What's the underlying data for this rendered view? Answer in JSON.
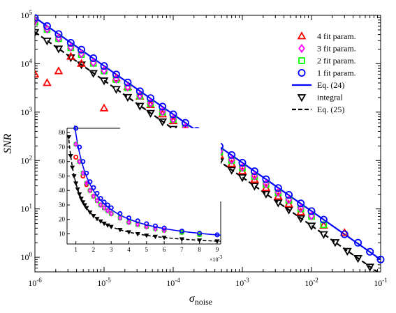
{
  "chart_data": [
    {
      "type": "scatter",
      "xlabel_main": "σ",
      "xlabel_sub": "noise",
      "ylabel": "SNR",
      "xscale": "log",
      "yscale": "log",
      "xlim": [
        1e-06,
        0.1
      ],
      "ylim": [
        0.5,
        100000
      ],
      "x_tick_labels": [
        {
          "base": "10",
          "exp": "-6",
          "value": 1e-06
        },
        {
          "base": "10",
          "exp": "-5",
          "value": 1e-05
        },
        {
          "base": "10",
          "exp": "-4",
          "value": 0.0001
        },
        {
          "base": "10",
          "exp": "-3",
          "value": 0.001
        },
        {
          "base": "10",
          "exp": "-2",
          "value": 0.01
        },
        {
          "base": "10",
          "exp": "-1",
          "value": 0.1
        }
      ],
      "y_tick_labels": [
        {
          "base": "10",
          "exp": "0",
          "value": 1
        },
        {
          "base": "10",
          "exp": "1",
          "value": 10
        },
        {
          "base": "10",
          "exp": "2",
          "value": 100
        },
        {
          "base": "10",
          "exp": "3",
          "value": 1000
        },
        {
          "base": "10",
          "exp": "4",
          "value": 10000
        },
        {
          "base": "10",
          "exp": "5",
          "value": 100000
        }
      ],
      "legend_position": "top-right",
      "series": [
        {
          "name": "4 fit param.",
          "marker": "triangle-up",
          "color": "#ff0000",
          "x": [
            1e-06,
            1.5e-06,
            2.2e-06,
            3.3e-06,
            4.7e-06,
            1e-05,
            1.5e-05,
            2.2e-05,
            3.3e-05,
            4.7e-05,
            7e-05,
            0.0001,
            0.00015,
            0.00022,
            0.00033,
            0.00047,
            0.0007,
            0.001,
            0.0015,
            0.0022,
            0.0033,
            0.0047,
            0.007,
            0.015,
            0.03
          ],
          "y": [
            6000,
            4000,
            7000,
            14000,
            10000,
            1200,
            5000,
            3300,
            2100,
            1400,
            900,
            650,
            420,
            280,
            185,
            128,
            85,
            60,
            40,
            27,
            18,
            12.5,
            8.5,
            4.5,
            3.2
          ]
        },
        {
          "name": "3 fit param.",
          "marker": "diamond",
          "color": "#ff00ff",
          "x": [
            1e-06,
            1.5e-06,
            2.2e-06,
            3.3e-06,
            4.7e-06,
            7e-06,
            1e-05,
            1.5e-05,
            2.2e-05,
            3.3e-05,
            4.7e-05,
            7e-05,
            0.0001,
            0.00015,
            0.00022,
            0.00033,
            0.00047,
            0.0007,
            0.001,
            0.0015,
            0.0022,
            0.0033,
            0.0047,
            0.007,
            0.01
          ],
          "y": [
            75000,
            52000,
            34000,
            22000,
            16000,
            10500,
            7300,
            4800,
            3300,
            2200,
            1550,
            1030,
            720,
            480,
            330,
            220,
            155,
            103,
            72,
            48,
            33,
            22,
            15.5,
            10.3,
            7.2
          ]
        },
        {
          "name": "2 fit param.",
          "marker": "square",
          "color": "#00ff00",
          "x": [
            1e-06,
            1.5e-06,
            2.2e-06,
            3.3e-06,
            4.7e-06,
            7e-06,
            1e-05,
            1.5e-05,
            2.2e-05,
            3.3e-05,
            4.7e-05,
            7e-05,
            0.0001,
            0.00015,
            0.00022,
            0.00033,
            0.00047,
            0.0007,
            0.001,
            0.0015,
            0.0022,
            0.0033,
            0.0047,
            0.007,
            0.01,
            0.015
          ],
          "y": [
            73000,
            51000,
            33000,
            21500,
            15500,
            10200,
            7100,
            4700,
            3200,
            2150,
            1500,
            1000,
            700,
            470,
            320,
            215,
            150,
            100,
            70,
            47,
            32,
            21.5,
            15,
            10,
            7,
            4.7
          ]
        },
        {
          "name": "1 fit param.",
          "marker": "circle",
          "color": "#0000ff",
          "x": [
            1e-06,
            1.5e-06,
            2.2e-06,
            3.3e-06,
            4.7e-06,
            7e-06,
            1e-05,
            1.5e-05,
            2.2e-05,
            3.3e-05,
            4.7e-05,
            7e-05,
            0.0001,
            0.00015,
            0.00022,
            0.00033,
            0.00047,
            0.0007,
            0.001,
            0.0015,
            0.0022,
            0.0033,
            0.0047,
            0.007,
            0.01,
            0.015,
            0.03,
            0.047,
            0.07,
            0.1
          ],
          "y": [
            88000,
            60000,
            41000,
            27000,
            19500,
            13000,
            9000,
            6000,
            4100,
            2700,
            1950,
            1300,
            900,
            600,
            410,
            270,
            195,
            130,
            90,
            60,
            41,
            27,
            19.5,
            13,
            9,
            6,
            3,
            2,
            1.3,
            0.9
          ]
        },
        {
          "name": "Eq. (24)",
          "marker": "line",
          "color": "#0000ff",
          "x": [
            1e-06,
            0.1
          ],
          "y": [
            90000,
            0.9
          ]
        },
        {
          "name": "integral",
          "marker": "triangle-down",
          "color": "#000000",
          "x": [
            1e-06,
            1.5e-06,
            2.2e-06,
            3.3e-06,
            4.7e-06,
            7e-06,
            1e-05,
            1.5e-05,
            2.2e-05,
            3.3e-05,
            4.7e-05,
            7e-05,
            0.0001,
            0.00015,
            0.00022,
            0.00033,
            0.00047,
            0.0007,
            0.001,
            0.0015,
            0.0022,
            0.0033,
            0.0047,
            0.007,
            0.01,
            0.015,
            0.022,
            0.033,
            0.047,
            0.07
          ],
          "y": [
            45000,
            30000,
            20500,
            13500,
            9600,
            6400,
            4500,
            3000,
            2050,
            1350,
            960,
            640,
            450,
            300,
            205,
            135,
            96,
            64,
            45,
            30,
            20.5,
            13.5,
            9.6,
            6.4,
            4.5,
            3,
            2.05,
            1.35,
            0.96,
            0.64
          ]
        },
        {
          "name": "Eq. (25)",
          "marker": "dashed-line",
          "color": "#000000",
          "x": [
            1e-06,
            0.1
          ],
          "y": [
            45000,
            0.45
          ]
        }
      ]
    },
    {
      "type": "scatter",
      "position": "inset",
      "xlim": [
        0.0005,
        0.0092
      ],
      "ylim": [
        3,
        83
      ],
      "x_tick_labels": [
        "1",
        "2",
        "3",
        "4",
        "5",
        "6",
        "7",
        "8",
        "9"
      ],
      "x_tick_values": [
        0.001,
        0.002,
        0.003,
        0.004,
        0.005,
        0.006,
        0.007,
        0.008,
        0.009
      ],
      "x_multiplier_label": "×10",
      "x_multiplier_exp": "-3",
      "y_tick_labels": [
        "10",
        "20",
        "30",
        "40",
        "50",
        "60",
        "70",
        "80"
      ],
      "y_tick_values": [
        10,
        20,
        30,
        40,
        50,
        60,
        70,
        80
      ],
      "series": [
        {
          "name": "1 fit param.",
          "marker": "circle",
          "color": "#0000ff",
          "x": [
            0.001,
            0.0012,
            0.0014,
            0.0016,
            0.0018,
            0.002,
            0.0022,
            0.0024,
            0.0026,
            0.0028,
            0.003,
            0.0035,
            0.004,
            0.0045,
            0.005,
            0.0055,
            0.006,
            0.007,
            0.008,
            0.009
          ],
          "y": [
            83,
            70,
            60,
            52,
            46,
            42,
            38,
            34.5,
            32,
            30,
            28,
            24,
            21,
            19,
            17,
            15.5,
            14,
            12,
            10.5,
            9.3
          ]
        },
        {
          "name": "2 fit param.",
          "marker": "square",
          "color": "#00ff00",
          "x": [
            0.001,
            0.0012,
            0.0014,
            0.0016,
            0.0018,
            0.002,
            0.0022,
            0.0024,
            0.0026,
            0.0028,
            0.003,
            0.0035,
            0.004,
            0.0045,
            0.005,
            0.0055,
            0.006,
            0.007,
            0.008
          ],
          "y": [
            72,
            60,
            52,
            45,
            40,
            36,
            33,
            30,
            28,
            26,
            24,
            21,
            18,
            16.5,
            15,
            13.5,
            12.5,
            11,
            9.5
          ]
        },
        {
          "name": "3 fit param.",
          "marker": "diamond",
          "color": "#ff00ff",
          "x": [
            0.001,
            0.0012,
            0.0014,
            0.0016,
            0.0018,
            0.002,
            0.0022,
            0.0024,
            0.0026,
            0.0028,
            0.003,
            0.0035,
            0.004,
            0.0045,
            0.005,
            0.0055,
            0.006
          ],
          "y": [
            72,
            60,
            52,
            45,
            40,
            36,
            33,
            30,
            28,
            26,
            24,
            21,
            18,
            16.5,
            15,
            13.5,
            12.5
          ]
        },
        {
          "name": "4 fit param.",
          "marker": "circle",
          "color": "#ff0000",
          "x": [
            0.001,
            0.0012,
            0.0014,
            0.0016,
            0.0018,
            0.002,
            0.0024,
            0.003,
            0.004,
            0.005,
            0.006,
            0.007,
            0.008
          ],
          "y": [
            63,
            60,
            50,
            44,
            40,
            36,
            30,
            24,
            18,
            15,
            12.5,
            11,
            9.5
          ]
        },
        {
          "name": "Eq. (24)",
          "marker": "line",
          "color": "#0000ff",
          "x": [
            0.0009,
            0.0093
          ],
          "y": [
            88,
            9
          ]
        },
        {
          "name": "integral",
          "marker": "triangle-down",
          "color": "#000000",
          "x": [
            0.0006,
            0.0007,
            0.0008,
            0.0009,
            0.001,
            0.0011,
            0.0012,
            0.0013,
            0.0014,
            0.0015,
            0.0016,
            0.0018,
            0.002,
            0.0022,
            0.0024,
            0.0026,
            0.0028,
            0.003,
            0.0035,
            0.004,
            0.0045,
            0.005,
            0.0055,
            0.006,
            0.007,
            0.008,
            0.009
          ],
          "y": [
            77,
            64,
            56,
            50,
            45,
            41,
            37.5,
            34.5,
            32,
            30,
            28,
            25,
            22.5,
            20.5,
            18.8,
            17.3,
            16,
            15,
            12.9,
            11.3,
            10,
            9,
            8.2,
            7.5,
            6.4,
            5.6,
            5
          ]
        },
        {
          "name": "Eq. (25)",
          "marker": "dashed-line",
          "color": "#000000",
          "x": [
            0.0006,
            0.0093
          ],
          "y": [
            75,
            4.8
          ]
        }
      ]
    }
  ]
}
